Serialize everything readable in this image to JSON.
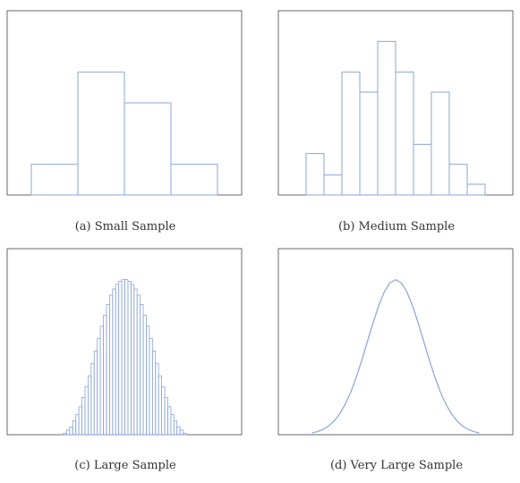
{
  "chart_data": [
    {
      "type": "bar",
      "caption": "(a) Small Sample",
      "title": "",
      "xlabel": "",
      "ylabel": "",
      "bins": 4,
      "values": [
        0.2,
        0.8,
        0.6,
        0.2
      ],
      "ylim": [
        0,
        1.2
      ],
      "color": "#8aa4d6"
    },
    {
      "type": "bar",
      "caption": "(b) Medium Sample",
      "title": "",
      "xlabel": "",
      "ylabel": "",
      "bins": 10,
      "values": [
        0.27,
        0.13,
        0.8,
        0.67,
        1.0,
        0.8,
        0.33,
        0.67,
        0.2,
        0.07
      ],
      "ylim": [
        0,
        1.2
      ],
      "color": "#8aa4d6"
    },
    {
      "type": "bar",
      "caption": "(c) Large Sample",
      "title": "",
      "xlabel": "",
      "ylabel": "",
      "bins": 40,
      "values": [
        0.01,
        0.03,
        0.05,
        0.09,
        0.13,
        0.18,
        0.24,
        0.31,
        0.38,
        0.46,
        0.54,
        0.62,
        0.7,
        0.77,
        0.84,
        0.9,
        0.94,
        0.97,
        0.99,
        1.0,
        1.0,
        0.99,
        0.97,
        0.94,
        0.9,
        0.84,
        0.77,
        0.7,
        0.62,
        0.54,
        0.46,
        0.38,
        0.31,
        0.24,
        0.18,
        0.13,
        0.09,
        0.05,
        0.03,
        0.01
      ],
      "ylim": [
        0,
        1.2
      ],
      "color": "#8aa4d6"
    },
    {
      "type": "line",
      "caption": "(d) Very Large Sample",
      "title": "",
      "xlabel": "",
      "ylabel": "",
      "x": [
        -3.0,
        -2.8,
        -2.6,
        -2.4,
        -2.2,
        -2.0,
        -1.8,
        -1.6,
        -1.4,
        -1.2,
        -1.0,
        -0.8,
        -0.6,
        -0.4,
        -0.2,
        0.0,
        0.2,
        0.4,
        0.6,
        0.8,
        1.0,
        1.2,
        1.4,
        1.6,
        1.8,
        2.0,
        2.2,
        2.4,
        2.6,
        2.8,
        3.0
      ],
      "values": [
        0.011,
        0.02,
        0.034,
        0.056,
        0.089,
        0.135,
        0.198,
        0.278,
        0.375,
        0.487,
        0.607,
        0.726,
        0.835,
        0.923,
        0.98,
        1.0,
        0.98,
        0.923,
        0.835,
        0.726,
        0.607,
        0.487,
        0.375,
        0.278,
        0.198,
        0.135,
        0.089,
        0.056,
        0.034,
        0.02,
        0.011
      ],
      "xlim": [
        -4.2,
        4.2
      ],
      "ylim": [
        0,
        1.2
      ],
      "color": "#8aa4d6"
    }
  ]
}
